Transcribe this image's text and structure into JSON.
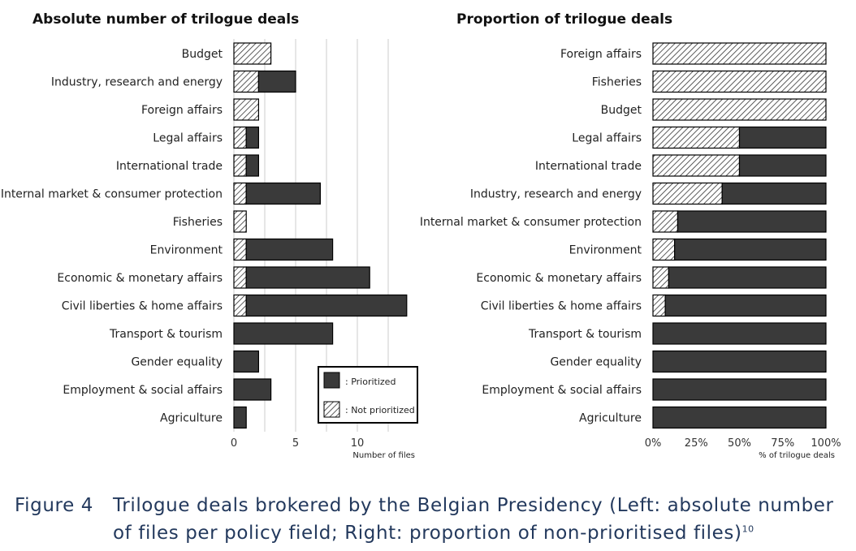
{
  "chart_data": [
    {
      "type": "bar",
      "orientation": "horizontal",
      "stacked": true,
      "title": "Absolute number of trilogue deals",
      "xlabel": "Number of files",
      "xlim": [
        0,
        14.5
      ],
      "xticks": [
        0,
        5,
        10
      ],
      "xtick_labels": [
        "0",
        "5",
        "10"
      ],
      "categories": [
        "Budget",
        "Industry, research and energy",
        "Foreign affairs",
        "Legal affairs",
        "International trade",
        "Internal market & consumer protection",
        "Fisheries",
        "Environment",
        "Economic & monetary affairs",
        "Civil liberties & home affairs",
        "Transport & tourism",
        "Gender equality",
        "Employment & social affairs",
        "Agriculture"
      ],
      "series": [
        {
          "name": "Not prioritized",
          "values": [
            3,
            2,
            2,
            1,
            1,
            1,
            1,
            1,
            1,
            1,
            0,
            0,
            0,
            0
          ]
        },
        {
          "name": "Prioritized",
          "values": [
            0,
            3,
            0,
            1,
            1,
            6,
            0,
            7,
            10,
            13,
            8,
            2,
            3,
            1
          ]
        }
      ],
      "legend": {
        "position": "bottom-right",
        "entries": [
          ": Prioritized",
          ": Not prioritized"
        ]
      },
      "grid": true
    },
    {
      "type": "bar",
      "orientation": "horizontal",
      "stacked": true,
      "title": "Proportion of trilogue deals",
      "xlabel": "% of trilogue deals",
      "xlim": [
        0,
        100
      ],
      "xticks": [
        0,
        25,
        50,
        75,
        100
      ],
      "xtick_labels": [
        "0%",
        "25%",
        "50%",
        "75%",
        "100%"
      ],
      "categories": [
        "Foreign affairs",
        "Fisheries",
        "Budget",
        "Legal affairs",
        "International trade",
        "Industry, research and energy",
        "Internal market & consumer protection",
        "Environment",
        "Economic & monetary affairs",
        "Civil liberties & home affairs",
        "Transport & tourism",
        "Gender equality",
        "Employment & social affairs",
        "Agriculture"
      ],
      "series": [
        {
          "name": "Not prioritized",
          "values": [
            100,
            100,
            100,
            50,
            50,
            40,
            14.3,
            12.5,
            9.1,
            7.1,
            0,
            0,
            0,
            0
          ]
        },
        {
          "name": "Prioritized",
          "values": [
            0,
            0,
            0,
            50,
            50,
            60,
            85.7,
            87.5,
            90.9,
            92.9,
            100,
            100,
            100,
            100
          ]
        }
      ],
      "grid": false
    }
  ],
  "caption": {
    "label": "Figure 4",
    "line1": "Trilogue deals brokered by the Belgian Presidency (Left: absolute number",
    "line2": "of files per policy field; Right: proportion of non-prioritised files)",
    "footnote": "10"
  },
  "colors": {
    "prioritized": "#3a3a3a",
    "caption": "#23395d",
    "grid": "#cccccc"
  }
}
